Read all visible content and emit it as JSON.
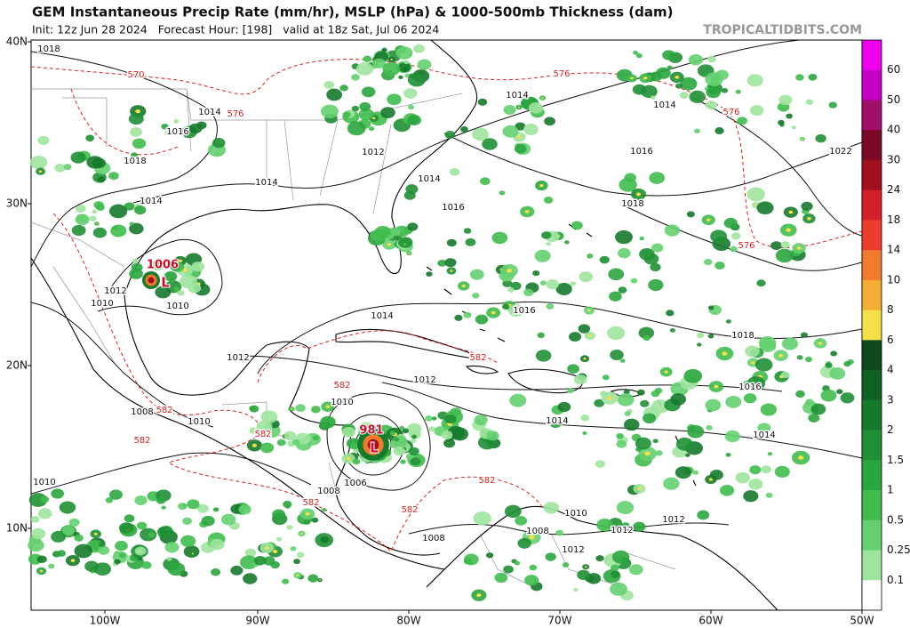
{
  "header": {
    "title": "GEM Instantaneous Precip Rate (mm/hr), MSLP (hPa) & 1000-500mb Thickness (dam)",
    "subtitle": "Init: 12z Jun 28 2024   Forecast Hour: [198]   valid at 18z Sat, Jul 06 2024",
    "site": "TROPICALTIDBITS.COM"
  },
  "axes": {
    "latitudes": [
      "40N",
      "30N",
      "20N",
      "10N"
    ],
    "longitudes": [
      "100W",
      "90W",
      "80W",
      "70W",
      "60W",
      "50W"
    ]
  },
  "colorbar": {
    "labels": [
      "60",
      "50",
      "40",
      "30",
      "24",
      "18",
      "14",
      "10",
      "8",
      "6",
      "4",
      "3",
      "2",
      "1.5",
      "1",
      "0.5",
      "0.25",
      "0.1"
    ],
    "colors": [
      "#ee00ee",
      "#c400c4",
      "#a0106a",
      "#7a0a28",
      "#a0101e",
      "#d41e28",
      "#ee3c2c",
      "#f27a2e",
      "#f4ae34",
      "#f6e04a",
      "#0c4a1c",
      "#0f6224",
      "#167a2c",
      "#1f9034",
      "#2aa63e",
      "#40bc4e",
      "#64d070",
      "#9ee49e",
      "#ffffff"
    ]
  },
  "isobar_labels": [
    "1018",
    "1014",
    "1016",
    "1018",
    "1014",
    "1012",
    "1014",
    "1016",
    "1014",
    "1014",
    "1016",
    "1018",
    "1020",
    "1022",
    "1014",
    "1012",
    "1010",
    "1010",
    "1014",
    "1016",
    "1018",
    "1012",
    "1012",
    "1016",
    "1008",
    "1010",
    "1014",
    "1010",
    "1014",
    "1010",
    "1008",
    "1006",
    "1010",
    "1012",
    "1012",
    "1008",
    "1008",
    "1012"
  ],
  "thickness_labels": [
    "570",
    "576",
    "576",
    "576",
    "576",
    "582",
    "582",
    "582",
    "582",
    "582",
    "582",
    "582",
    "582"
  ],
  "lows": [
    {
      "pressure": "1006",
      "symbol": "L"
    },
    {
      "pressure": "981",
      "symbol": "L"
    }
  ]
}
